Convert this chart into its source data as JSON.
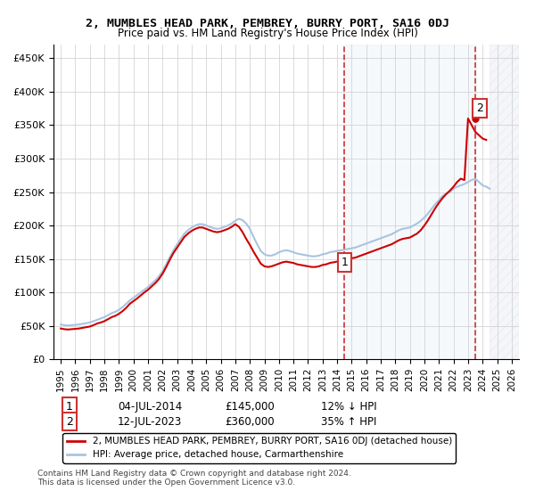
{
  "title": "2, MUMBLES HEAD PARK, PEMBREY, BURRY PORT, SA16 0DJ",
  "subtitle": "Price paid vs. HM Land Registry's House Price Index (HPI)",
  "legend_line1": "2, MUMBLES HEAD PARK, PEMBREY, BURRY PORT, SA16 0DJ (detached house)",
  "legend_line2": "HPI: Average price, detached house, Carmarthenshire",
  "annotation1_label": "1",
  "annotation1_date": "04-JUL-2014",
  "annotation1_price": "£145,000",
  "annotation1_hpi": "12% ↓ HPI",
  "annotation1_year": 2014.5,
  "annotation1_value": 145000,
  "annotation2_label": "2",
  "annotation2_date": "12-JUL-2023",
  "annotation2_price": "£360,000",
  "annotation2_hpi": "35% ↑ HPI",
  "annotation2_year": 2023.5,
  "annotation2_value": 360000,
  "footer": "Contains HM Land Registry data © Crown copyright and database right 2024.\nThis data is licensed under the Open Government Licence v3.0.",
  "ylim": [
    0,
    470000
  ],
  "xlim_start": 1994.5,
  "xlim_end": 2026.5,
  "hpi_color": "#a8c4e0",
  "price_color": "#cc0000",
  "hatch_color": "#d0d8e8",
  "background_color": "#e8f0f8",
  "hpi_data": {
    "years": [
      1995,
      1995.25,
      1995.5,
      1995.75,
      1996,
      1996.25,
      1996.5,
      1996.75,
      1997,
      1997.25,
      1997.5,
      1997.75,
      1998,
      1998.25,
      1998.5,
      1998.75,
      1999,
      1999.25,
      1999.5,
      1999.75,
      2000,
      2000.25,
      2000.5,
      2000.75,
      2001,
      2001.25,
      2001.5,
      2001.75,
      2002,
      2002.25,
      2002.5,
      2002.75,
      2003,
      2003.25,
      2003.5,
      2003.75,
      2004,
      2004.25,
      2004.5,
      2004.75,
      2005,
      2005.25,
      2005.5,
      2005.75,
      2006,
      2006.25,
      2006.5,
      2006.75,
      2007,
      2007.25,
      2007.5,
      2007.75,
      2008,
      2008.25,
      2008.5,
      2008.75,
      2009,
      2009.25,
      2009.5,
      2009.75,
      2010,
      2010.25,
      2010.5,
      2010.75,
      2011,
      2011.25,
      2011.5,
      2011.75,
      2012,
      2012.25,
      2012.5,
      2012.75,
      2013,
      2013.25,
      2013.5,
      2013.75,
      2014,
      2014.25,
      2014.5,
      2014.75,
      2015,
      2015.25,
      2015.5,
      2015.75,
      2016,
      2016.25,
      2016.5,
      2016.75,
      2017,
      2017.25,
      2017.5,
      2017.75,
      2018,
      2018.25,
      2018.5,
      2018.75,
      2019,
      2019.25,
      2019.5,
      2019.75,
      2020,
      2020.25,
      2020.5,
      2020.75,
      2021,
      2021.25,
      2021.5,
      2021.75,
      2022,
      2022.25,
      2022.5,
      2022.75,
      2023,
      2023.25,
      2023.5,
      2023.75,
      2024,
      2024.25,
      2024.5
    ],
    "values": [
      52000,
      51000,
      50500,
      51000,
      51500,
      52000,
      53000,
      54000,
      55000,
      57000,
      59000,
      61000,
      63000,
      66000,
      69000,
      71000,
      74000,
      78000,
      83000,
      88000,
      92000,
      96000,
      100000,
      104000,
      108000,
      113000,
      118000,
      124000,
      132000,
      142000,
      153000,
      163000,
      172000,
      180000,
      188000,
      193000,
      197000,
      200000,
      202000,
      202000,
      200000,
      198000,
      196000,
      195000,
      196000,
      198000,
      200000,
      203000,
      207000,
      210000,
      208000,
      203000,
      195000,
      183000,
      172000,
      162000,
      157000,
      155000,
      155000,
      157000,
      160000,
      162000,
      163000,
      162000,
      160000,
      158000,
      157000,
      156000,
      155000,
      154000,
      154000,
      155000,
      157000,
      158000,
      160000,
      161000,
      162000,
      163000,
      164000,
      165000,
      166000,
      167000,
      169000,
      171000,
      173000,
      175000,
      177000,
      179000,
      181000,
      183000,
      185000,
      187000,
      190000,
      193000,
      195000,
      196000,
      197000,
      200000,
      203000,
      207000,
      212000,
      218000,
      225000,
      232000,
      238000,
      244000,
      248000,
      250000,
      255000,
      258000,
      260000,
      262000,
      265000,
      268000,
      270000,
      265000,
      260000,
      258000,
      255000
    ]
  },
  "price_data": {
    "years": [
      1995,
      1995.25,
      1995.5,
      1995.75,
      1996,
      1996.25,
      1996.5,
      1996.75,
      1997,
      1997.25,
      1997.5,
      1997.75,
      1998,
      1998.25,
      1998.5,
      1998.75,
      1999,
      1999.25,
      1999.5,
      1999.75,
      2000,
      2000.25,
      2000.5,
      2000.75,
      2001,
      2001.25,
      2001.5,
      2001.75,
      2002,
      2002.25,
      2002.5,
      2002.75,
      2003,
      2003.25,
      2003.5,
      2003.75,
      2004,
      2004.25,
      2004.5,
      2004.75,
      2005,
      2005.25,
      2005.5,
      2005.75,
      2006,
      2006.25,
      2006.5,
      2006.75,
      2007,
      2007.25,
      2007.5,
      2007.75,
      2008,
      2008.25,
      2008.5,
      2008.75,
      2009,
      2009.25,
      2009.5,
      2009.75,
      2010,
      2010.25,
      2010.5,
      2010.75,
      2011,
      2011.25,
      2011.5,
      2011.75,
      2012,
      2012.25,
      2012.5,
      2012.75,
      2013,
      2013.25,
      2013.5,
      2013.75,
      2014,
      2014.25,
      2014.5,
      2014.75,
      2015,
      2015.25,
      2015.5,
      2015.75,
      2016,
      2016.25,
      2016.5,
      2016.75,
      2017,
      2017.25,
      2017.5,
      2017.75,
      2018,
      2018.25,
      2018.5,
      2018.75,
      2019,
      2019.25,
      2019.5,
      2019.75,
      2020,
      2020.25,
      2020.5,
      2020.75,
      2021,
      2021.25,
      2021.5,
      2021.75,
      2022,
      2022.25,
      2022.5,
      2022.75,
      2023,
      2023.25,
      2023.5,
      2023.75,
      2024,
      2024.25
    ],
    "values": [
      46000,
      45000,
      44500,
      45000,
      45500,
      46000,
      47000,
      48000,
      49000,
      51000,
      53500,
      55000,
      57000,
      60000,
      63000,
      65000,
      68000,
      72000,
      77000,
      83000,
      87000,
      91000,
      95500,
      100000,
      104000,
      109000,
      114000,
      120000,
      128000,
      138000,
      149000,
      159000,
      167000,
      175000,
      183000,
      188000,
      192000,
      195000,
      197000,
      197000,
      195000,
      193000,
      191000,
      190000,
      191000,
      193000,
      195000,
      198000,
      202000,
      198000,
      190000,
      180000,
      171000,
      161000,
      152000,
      143000,
      139000,
      138000,
      139000,
      141000,
      143000,
      145000,
      146000,
      145000,
      144000,
      142000,
      141000,
      140000,
      139000,
      138000,
      138000,
      139000,
      141000,
      142000,
      144000,
      145000,
      146000,
      147000,
      148000,
      150000,
      151000,
      152000,
      154000,
      156000,
      158000,
      160000,
      162000,
      164000,
      166000,
      168000,
      170000,
      172000,
      175000,
      178000,
      180000,
      181000,
      182000,
      185000,
      188000,
      193000,
      200000,
      208000,
      217000,
      226000,
      234000,
      241000,
      247000,
      252000,
      258000,
      265000,
      270000,
      268000,
      360000,
      350000,
      340000,
      335000,
      330000,
      328000
    ]
  },
  "x_ticks": [
    1995,
    1996,
    1997,
    1998,
    1999,
    2000,
    2001,
    2002,
    2003,
    2004,
    2005,
    2006,
    2007,
    2008,
    2009,
    2010,
    2011,
    2012,
    2013,
    2014,
    2015,
    2016,
    2017,
    2018,
    2019,
    2020,
    2021,
    2022,
    2023,
    2024,
    2025,
    2026
  ],
  "future_start": 2024.5,
  "sale1_year": 2014.5,
  "sale2_year": 2023.5
}
